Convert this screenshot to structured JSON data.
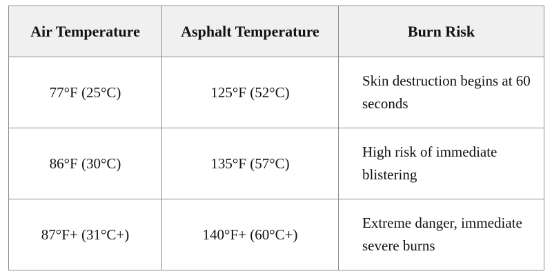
{
  "table": {
    "headers": [
      "Air Temperature",
      "Asphalt Temperature",
      "Burn Risk"
    ],
    "rows": [
      [
        "77°F (25°C)",
        "125°F (52°C)",
        "Skin destruction begins at 60 seconds"
      ],
      [
        "86°F (30°C)",
        "135°F (57°C)",
        "High risk of immediate blistering"
      ],
      [
        "87°F+ (31°C+)",
        "140°F+ (60°C+)",
        "Extreme danger, immediate severe burns"
      ]
    ]
  }
}
